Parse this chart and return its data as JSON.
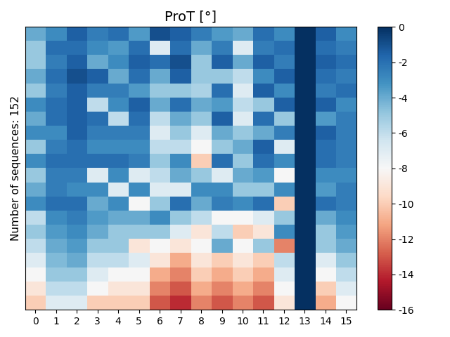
{
  "title": "ProT [°]",
  "ylabel": "Number of sequences: 152",
  "vmin": -16,
  "vmax": 0,
  "colormap": "RdBu",
  "xticks": [
    0,
    1,
    2,
    3,
    4,
    5,
    6,
    7,
    8,
    9,
    10,
    11,
    12,
    13,
    14,
    15
  ],
  "figsize": [
    6.4,
    4.8
  ],
  "dpi": 100,
  "data": [
    [
      -4.0,
      -3.0,
      -1.5,
      -2.5,
      -2.0,
      -3.5,
      -1.0,
      -1.5,
      -2.5,
      -3.5,
      -4.0,
      -2.0,
      -3.0,
      0.0,
      -1.5,
      -3.0
    ],
    [
      -5.0,
      -2.0,
      -2.0,
      -3.0,
      -3.5,
      -2.0,
      -7.0,
      -2.0,
      -4.0,
      -2.5,
      -7.0,
      -2.5,
      -2.0,
      0.0,
      -2.0,
      -2.5
    ],
    [
      -5.0,
      -2.5,
      -1.5,
      -4.0,
      -3.0,
      -1.5,
      -2.0,
      -1.0,
      -5.0,
      -1.5,
      -4.0,
      -1.5,
      -2.5,
      0.0,
      -1.5,
      -2.0
    ],
    [
      -4.0,
      -2.0,
      -1.0,
      -1.5,
      -4.0,
      -2.0,
      -4.0,
      -1.5,
      -5.0,
      -5.0,
      -6.0,
      -3.0,
      -1.5,
      0.0,
      -2.0,
      -2.5
    ],
    [
      -5.0,
      -2.5,
      -1.5,
      -2.5,
      -2.5,
      -3.5,
      -5.0,
      -5.0,
      -5.5,
      -2.0,
      -7.0,
      -1.5,
      -3.0,
      0.0,
      -2.5,
      -2.0
    ],
    [
      -3.0,
      -2.0,
      -1.5,
      -6.0,
      -3.0,
      -1.5,
      -4.0,
      -2.0,
      -4.0,
      -3.5,
      -6.0,
      -5.0,
      -1.5,
      0.0,
      -1.5,
      -3.0
    ],
    [
      -4.0,
      -2.0,
      -1.5,
      -2.0,
      -6.0,
      -2.0,
      -6.0,
      -4.0,
      -5.0,
      -1.5,
      -7.0,
      -2.0,
      -5.0,
      0.0,
      -3.5,
      -2.5
    ],
    [
      -3.0,
      -3.0,
      -1.5,
      -2.5,
      -2.5,
      -2.5,
      -7.0,
      -5.0,
      -7.0,
      -4.0,
      -5.0,
      -4.0,
      -2.5,
      0.0,
      -1.5,
      -2.5
    ],
    [
      -5.0,
      -2.5,
      -2.0,
      -3.0,
      -3.0,
      -3.0,
      -6.0,
      -6.0,
      -8.0,
      -5.0,
      -4.0,
      -1.5,
      -7.0,
      0.0,
      -2.0,
      -2.5
    ],
    [
      -3.0,
      -2.0,
      -2.0,
      -2.0,
      -2.0,
      -2.5,
      -5.0,
      -3.0,
      -10.0,
      -2.0,
      -5.0,
      -2.0,
      -3.0,
      0.0,
      -2.0,
      -2.5
    ],
    [
      -5.0,
      -2.5,
      -2.5,
      -7.0,
      -3.0,
      -7.0,
      -6.0,
      -4.0,
      -5.0,
      -7.0,
      -4.0,
      -3.5,
      -8.0,
      0.0,
      -3.0,
      -3.0
    ],
    [
      -4.0,
      -2.5,
      -3.0,
      -3.0,
      -7.0,
      -3.0,
      -7.0,
      -7.0,
      -3.0,
      -3.0,
      -5.0,
      -5.0,
      -3.0,
      0.0,
      -3.5,
      -2.5
    ],
    [
      -3.0,
      -2.0,
      -2.0,
      -4.0,
      -3.0,
      -8.0,
      -5.0,
      -2.0,
      -4.0,
      -2.5,
      -3.0,
      -2.0,
      -10.0,
      0.0,
      -2.0,
      -2.5
    ],
    [
      -6.0,
      -3.0,
      -2.5,
      -3.5,
      -4.0,
      -4.0,
      -3.0,
      -5.0,
      -6.0,
      -8.0,
      -8.0,
      -7.0,
      -5.0,
      0.0,
      -4.0,
      -3.0
    ],
    [
      -5.0,
      -3.5,
      -3.0,
      -4.0,
      -5.0,
      -5.0,
      -5.0,
      -7.0,
      -9.0,
      -6.0,
      -10.0,
      -9.0,
      -3.0,
      0.0,
      -5.0,
      -3.5
    ],
    [
      -6.0,
      -4.0,
      -3.5,
      -5.0,
      -5.0,
      -9.0,
      -8.0,
      -9.0,
      -8.0,
      -4.0,
      -8.0,
      -5.0,
      -12.0,
      0.0,
      -5.0,
      -4.0
    ],
    [
      -7.0,
      -4.5,
      -4.0,
      -6.0,
      -6.0,
      -7.0,
      -9.0,
      -11.0,
      -9.0,
      -10.0,
      -9.0,
      -10.0,
      -6.0,
      0.0,
      -7.0,
      -5.0
    ],
    [
      -8.0,
      -5.0,
      -5.0,
      -7.0,
      -8.0,
      -8.0,
      -11.0,
      -12.0,
      -10.0,
      -11.0,
      -10.0,
      -11.0,
      -7.0,
      0.0,
      -8.0,
      -6.0
    ],
    [
      -9.0,
      -6.0,
      -6.0,
      -8.0,
      -9.0,
      -9.0,
      -12.0,
      -13.0,
      -11.0,
      -12.0,
      -11.0,
      -12.0,
      -8.0,
      0.0,
      -10.0,
      -7.0
    ],
    [
      -10.0,
      -7.0,
      -7.0,
      -10.0,
      -10.0,
      -10.0,
      -13.0,
      -14.0,
      -12.0,
      -13.0,
      -12.0,
      -13.0,
      -9.0,
      0.0,
      -11.0,
      -8.0
    ]
  ]
}
